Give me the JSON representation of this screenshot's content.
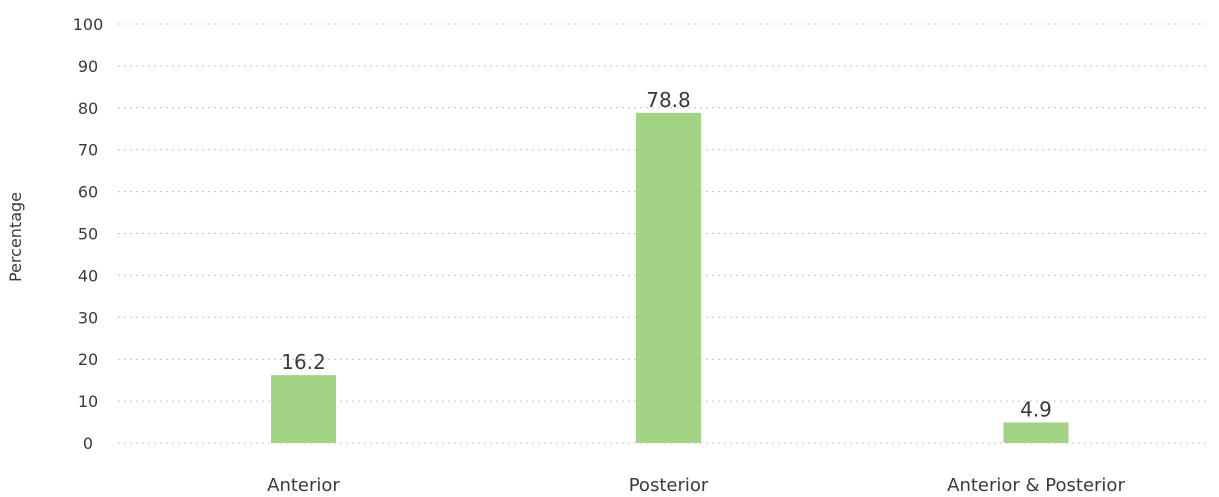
{
  "chart_data": {
    "type": "bar",
    "title": "",
    "xlabel": "",
    "ylabel": "Percentage",
    "ylim": [
      0,
      100
    ],
    "yticks": [
      0,
      10,
      20,
      30,
      40,
      50,
      60,
      70,
      80,
      90,
      100
    ],
    "categories": [
      "Anterior",
      "Posterior",
      "Anterior & Posterior"
    ],
    "values": [
      16.2,
      78.8,
      4.9
    ],
    "value_labels": [
      "16.2",
      "78.8",
      "4.9"
    ],
    "grid": true,
    "bar_color": "#a3d486",
    "grid_color": "#c4c4c4",
    "text_color": "#3a3a3a"
  }
}
